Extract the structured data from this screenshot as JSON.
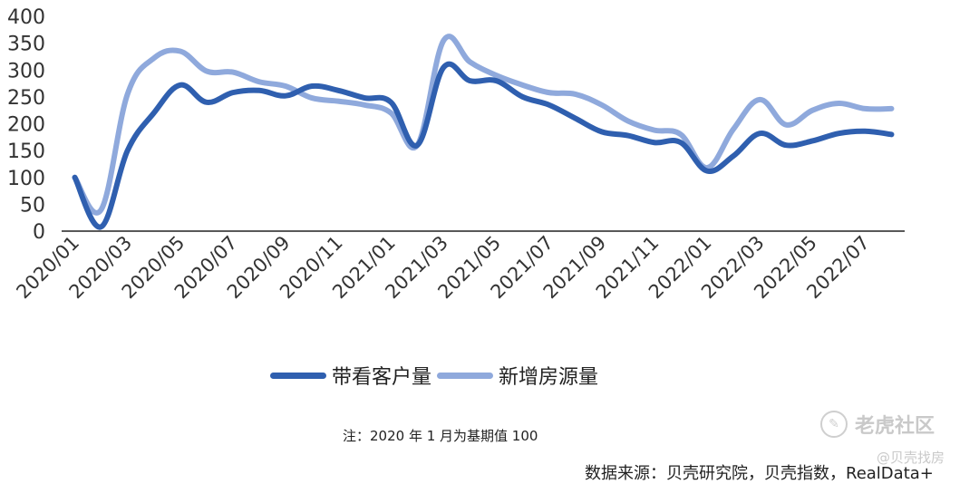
{
  "chart_data": {
    "type": "line",
    "ylim": [
      0,
      400
    ],
    "yticks": [
      0,
      50,
      100,
      150,
      200,
      250,
      300,
      350,
      400
    ],
    "x": [
      "2020/01",
      "2020/02",
      "2020/03",
      "2020/04",
      "2020/05",
      "2020/06",
      "2020/07",
      "2020/08",
      "2020/09",
      "2020/10",
      "2020/11",
      "2020/12",
      "2021/01",
      "2021/02",
      "2021/03",
      "2021/04",
      "2021/05",
      "2021/06",
      "2021/07",
      "2021/08",
      "2021/09",
      "2021/10",
      "2021/11",
      "2021/12",
      "2022/01",
      "2022/02",
      "2022/03",
      "2022/04",
      "2022/05",
      "2022/06",
      "2022/07",
      "2022/08"
    ],
    "xtick_labels": [
      "2020/01",
      "2020/03",
      "2020/05",
      "2020/07",
      "2020/09",
      "2020/11",
      "2021/01",
      "2021/03",
      "2021/05",
      "2021/07",
      "2021/09",
      "2021/11",
      "2022/01",
      "2022/03",
      "2022/05",
      "2022/07"
    ],
    "series": [
      {
        "name": "带看客户量",
        "color": "#2f5faf",
        "values": [
          100,
          8,
          150,
          220,
          272,
          240,
          258,
          262,
          252,
          270,
          262,
          248,
          240,
          160,
          305,
          280,
          280,
          250,
          235,
          210,
          185,
          178,
          165,
          165,
          112,
          140,
          182,
          160,
          168,
          182,
          186,
          180
        ]
      },
      {
        "name": "新增房源量",
        "color": "#8fa9dc",
        "values": [
          100,
          40,
          255,
          322,
          335,
          298,
          296,
          278,
          270,
          248,
          242,
          235,
          220,
          160,
          355,
          315,
          290,
          272,
          258,
          255,
          235,
          205,
          188,
          180,
          118,
          190,
          245,
          198,
          225,
          238,
          228,
          228
        ]
      }
    ]
  },
  "note": "注：2020 年 1 月为基期值 100",
  "source": "数据来源：贝壳研究院，贝壳指数，RealData+",
  "watermark": {
    "main": "老虎社区",
    "sub": "@贝壳找房"
  }
}
